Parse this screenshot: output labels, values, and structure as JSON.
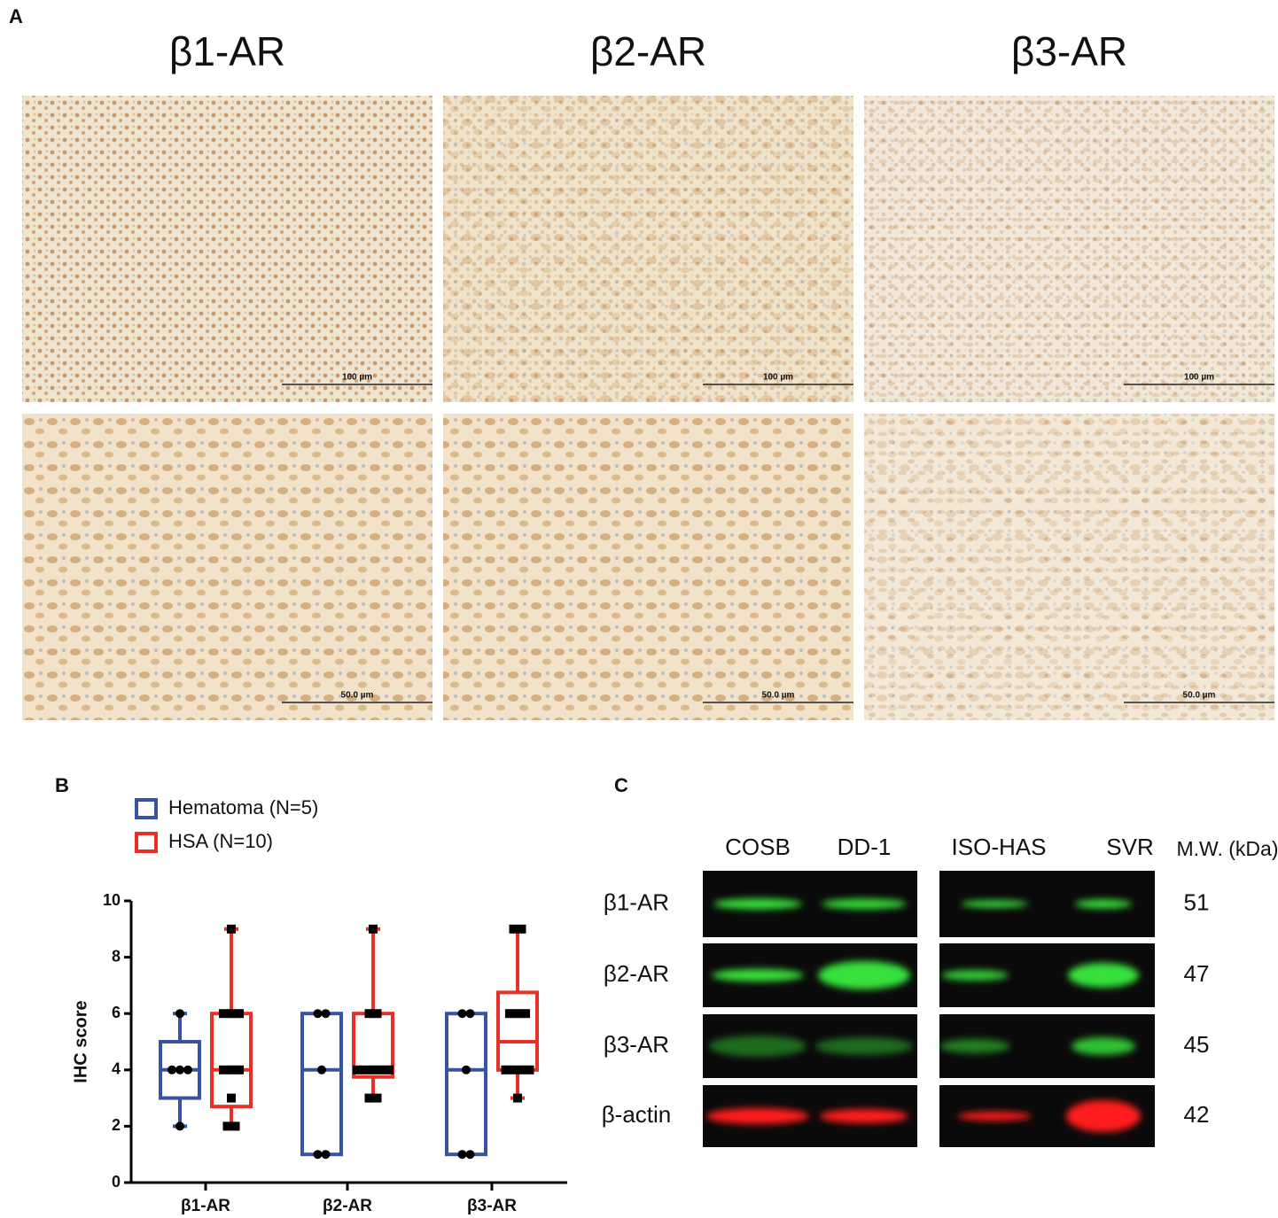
{
  "panel_a": {
    "label": "A",
    "titles": [
      "β1-AR",
      "β2-AR",
      "β3-AR"
    ],
    "scale_bars": [
      [
        "100 µm",
        "100 µm",
        "100 µm"
      ],
      [
        "50.0 µm",
        "50.0 µm",
        "50.0 µm"
      ]
    ]
  },
  "panel_b_label": "B",
  "chart_data": {
    "type": "box",
    "y_label": "IHC score",
    "categories": [
      "β1-AR",
      "β2-AR",
      "β3-AR"
    ],
    "ylim": [
      0,
      10
    ],
    "yticks": [
      0,
      2,
      4,
      6,
      8,
      10
    ],
    "series": [
      {
        "name": "Hematoma (N=5)",
        "color": "#3953a4",
        "marker": "circle",
        "boxes": [
          {
            "min": 2,
            "q1": 3,
            "median": 4,
            "q3": 5,
            "max": 6,
            "points": [
              6,
              4,
              4,
              4,
              2
            ]
          },
          {
            "min": 1,
            "q1": 1,
            "median": 4,
            "q3": 6,
            "max": 6,
            "points": [
              6,
              6,
              4,
              1,
              1
            ]
          },
          {
            "min": 1,
            "q1": 1,
            "median": 4,
            "q3": 6,
            "max": 6,
            "points": [
              6,
              6,
              4,
              1,
              1
            ]
          }
        ]
      },
      {
        "name": "HSA (N=10)",
        "color": "#e8302a",
        "marker": "square",
        "boxes": [
          {
            "min": 2,
            "q1": 2.7,
            "median": 4,
            "q3": 6,
            "max": 9,
            "points": [
              9,
              6,
              6,
              6,
              4,
              4,
              4,
              3,
              2,
              2
            ]
          },
          {
            "min": 3,
            "q1": 3.75,
            "median": 4,
            "q3": 6,
            "max": 9,
            "points": [
              9,
              6,
              6,
              4,
              4,
              4,
              4,
              4,
              3,
              3
            ]
          },
          {
            "min": 3,
            "q1": 4,
            "median": 5,
            "q3": 6.75,
            "max": 9,
            "points": [
              9,
              9,
              6,
              6,
              6,
              4,
              4,
              4,
              4,
              3
            ]
          }
        ]
      }
    ]
  },
  "panel_c": {
    "label": "C",
    "lanes": [
      "COSB",
      "DD-1",
      "ISO-HAS",
      "SVR"
    ],
    "mw_header": "M.W. (kDa)",
    "rows": [
      {
        "name": "β1-AR",
        "mw": 51
      },
      {
        "name": "β2-AR",
        "mw": 47
      },
      {
        "name": "β3-AR",
        "mw": 45
      },
      {
        "name": "β-actin",
        "mw": 42
      }
    ]
  }
}
